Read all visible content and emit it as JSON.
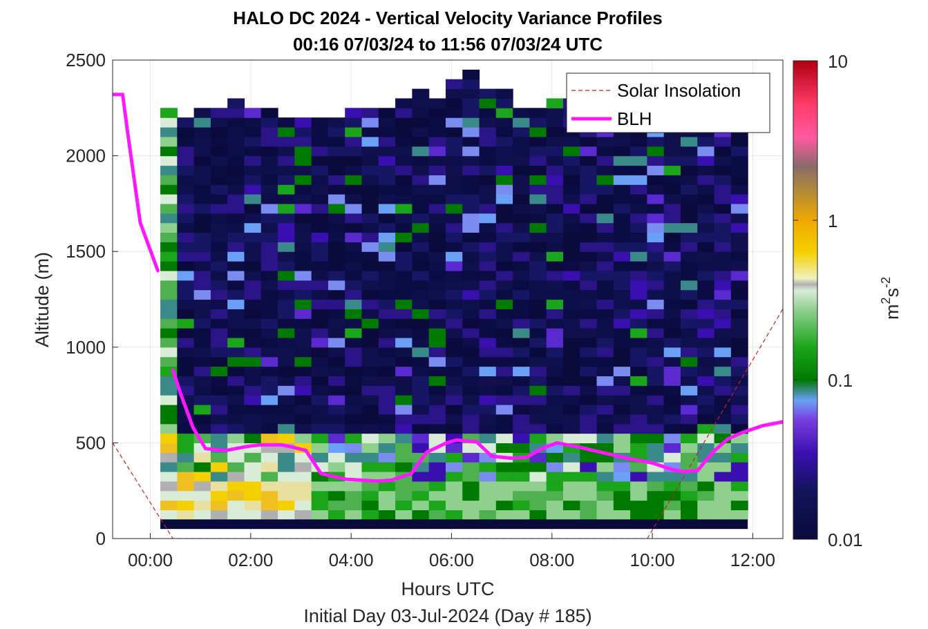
{
  "chart_data": {
    "type": "heatmap",
    "title": "HALO DC 2024 - Vertical Velocity Variance Profiles",
    "subtitle": "00:16 07/03/24 to 11:56 07/03/24  UTC",
    "xlabel": "Hours UTC",
    "xlabel2": "Initial Day 03-Jul-2024 (Day # 185)",
    "ylabel": "Altitude (m)",
    "x_ticks": [
      "00:00",
      "02:00",
      "04:00",
      "06:00",
      "08:00",
      "10:00",
      "12:00"
    ],
    "x_tick_hours": [
      0,
      2,
      4,
      6,
      8,
      10,
      12
    ],
    "xlim_hours": [
      -0.75,
      12.6
    ],
    "y_ticks": [
      "0",
      "500",
      "1000",
      "1500",
      "2000",
      "2500"
    ],
    "y_tick_values": [
      0,
      500,
      1000,
      1500,
      2000,
      2500
    ],
    "ylim": [
      0,
      2500
    ],
    "grid": true,
    "legend_position": "top-right",
    "colorbar": {
      "label_base": "m",
      "label_sup1": "2",
      "label_mid": "s",
      "label_sup2": "-2",
      "scale": "log",
      "range": [
        0.01,
        10
      ],
      "ticks": [
        "10",
        "1",
        "0.1",
        "0.01"
      ],
      "tick_values": [
        10,
        1,
        0.1,
        0.01
      ]
    },
    "series": [
      {
        "name": "Solar Insolation",
        "style": "dashed",
        "color": "#cc1f1f",
        "points": [
          [
            -0.75,
            500
          ],
          [
            0.45,
            0
          ],
          [
            9.9,
            0
          ],
          [
            12.6,
            1200
          ]
        ]
      },
      {
        "name": "BLH",
        "style": "solid",
        "color": "#ff17ff",
        "segments": [
          [
            [
              -0.75,
              2320
            ],
            [
              -0.55,
              2320
            ],
            [
              -0.45,
              2120
            ],
            [
              -0.2,
              1650
            ],
            [
              0.15,
              1400
            ]
          ],
          [
            [
              0.45,
              880
            ],
            [
              0.6,
              760
            ],
            [
              0.85,
              580
            ],
            [
              1.1,
              470
            ],
            [
              1.5,
              460
            ],
            [
              1.9,
              480
            ],
            [
              2.2,
              490
            ],
            [
              2.6,
              490
            ],
            [
              2.8,
              480
            ],
            [
              3.1,
              460
            ],
            [
              3.4,
              340
            ],
            [
              3.9,
              310
            ],
            [
              4.5,
              300
            ],
            [
              4.8,
              305
            ],
            [
              5.2,
              340
            ],
            [
              5.5,
              450
            ],
            [
              5.9,
              500
            ],
            [
              6.1,
              515
            ],
            [
              6.5,
              505
            ],
            [
              6.8,
              430
            ],
            [
              7.2,
              420
            ],
            [
              7.5,
              425
            ],
            [
              7.8,
              470
            ],
            [
              8.1,
              500
            ],
            [
              8.5,
              480
            ],
            [
              9.0,
              450
            ],
            [
              9.5,
              420
            ],
            [
              10.0,
              395
            ],
            [
              10.4,
              360
            ],
            [
              10.6,
              350
            ],
            [
              10.9,
              355
            ],
            [
              11.2,
              450
            ],
            [
              11.5,
              520
            ],
            [
              11.8,
              555
            ],
            [
              12.2,
              590
            ],
            [
              12.6,
              610
            ]
          ]
        ]
      }
    ],
    "heatmap": {
      "note_cols": 35,
      "x_start_hours": 0.2,
      "x_end_hours": 11.9,
      "bin_m": 50,
      "profile_columns": [
        {
          "h": 0.25,
          "top": 2250
        },
        {
          "h": 0.58,
          "top": 2200
        },
        {
          "h": 0.92,
          "top": 2250
        },
        {
          "h": 1.25,
          "top": 2250
        },
        {
          "h": 1.58,
          "top": 2300
        },
        {
          "h": 1.92,
          "top": 2250
        },
        {
          "h": 2.25,
          "top": 2250
        },
        {
          "h": 2.58,
          "top": 2200
        },
        {
          "h": 2.92,
          "top": 2200
        },
        {
          "h": 3.25,
          "top": 2200
        },
        {
          "h": 3.58,
          "top": 2200
        },
        {
          "h": 3.92,
          "top": 2250
        },
        {
          "h": 4.25,
          "top": 2250
        },
        {
          "h": 4.58,
          "top": 2250
        },
        {
          "h": 4.92,
          "top": 2300
        },
        {
          "h": 5.25,
          "top": 2350
        },
        {
          "h": 5.58,
          "top": 2300
        },
        {
          "h": 5.92,
          "top": 2400
        },
        {
          "h": 6.25,
          "top": 2450
        },
        {
          "h": 6.58,
          "top": 2350
        },
        {
          "h": 6.92,
          "top": 2350
        },
        {
          "h": 7.25,
          "top": 2250
        },
        {
          "h": 7.58,
          "top": 2250
        },
        {
          "h": 7.92,
          "top": 2300
        },
        {
          "h": 8.25,
          "top": 2300
        },
        {
          "h": 8.58,
          "top": 2250
        },
        {
          "h": 8.92,
          "top": 2250
        },
        {
          "h": 9.25,
          "top": 2250
        },
        {
          "h": 9.58,
          "top": 2250
        },
        {
          "h": 9.92,
          "top": 2250
        },
        {
          "h": 10.25,
          "top": 2250
        },
        {
          "h": 10.58,
          "top": 2250
        },
        {
          "h": 10.92,
          "top": 2250
        },
        {
          "h": 11.25,
          "top": 2250
        },
        {
          "h": 11.58,
          "top": 2250
        }
      ]
    }
  }
}
